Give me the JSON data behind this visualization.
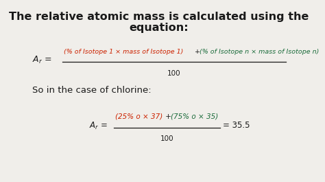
{
  "title_line1": "The relative atomic mass is calculated using the",
  "title_line2": "equation:",
  "bg_color": "#f0eeea",
  "text_color": "#1a1a1a",
  "red_color": "#cc2200",
  "green_color": "#1a6b3a",
  "black_color": "#1a1a1a",
  "title_fontsize": 11.5,
  "num_red1": "(% of Isotope 1 × mass of Isotope 1)",
  "num_plus": " + ",
  "num_green": "(% of Isotope n × mass of Isotope n)",
  "denom": "100",
  "case_text": "So in the case of chlorine:",
  "num2_red": "(25% o × 37)",
  "num2_plus": " + ",
  "num2_green": "(75% o × 35)",
  "denom2": "100",
  "result": "= 35.5"
}
